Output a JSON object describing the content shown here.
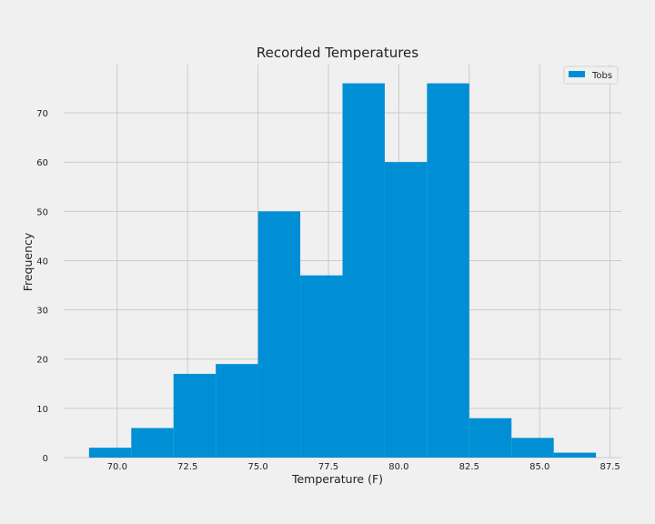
{
  "colors": {
    "background": "#f0f0f0",
    "grid": "#cbcbcb",
    "bar": "#008fd5",
    "text": "#222222"
  },
  "chart_data": {
    "type": "bar",
    "title": "Recorded Temperatures",
    "xlabel": "Temperature (F)",
    "ylabel": "Frequency",
    "xlim": [
      68.1,
      87.9
    ],
    "ylim": [
      0,
      79.8
    ],
    "grid": true,
    "legend_position": "top-right",
    "x_ticks": [
      "70.0",
      "72.5",
      "75.0",
      "77.5",
      "80.0",
      "82.5",
      "85.0",
      "87.5"
    ],
    "y_ticks": [
      "0",
      "10",
      "20",
      "30",
      "40",
      "50",
      "60",
      "70"
    ],
    "series": [
      {
        "name": "Tobs",
        "bin_edges": [
          69.0,
          70.5,
          72.0,
          73.5,
          75.0,
          76.5,
          78.0,
          79.5,
          81.0,
          82.5,
          84.0,
          85.5,
          87.0
        ],
        "values": [
          2,
          6,
          17,
          19,
          50,
          37,
          76,
          60,
          76,
          8,
          4,
          1
        ]
      }
    ]
  }
}
